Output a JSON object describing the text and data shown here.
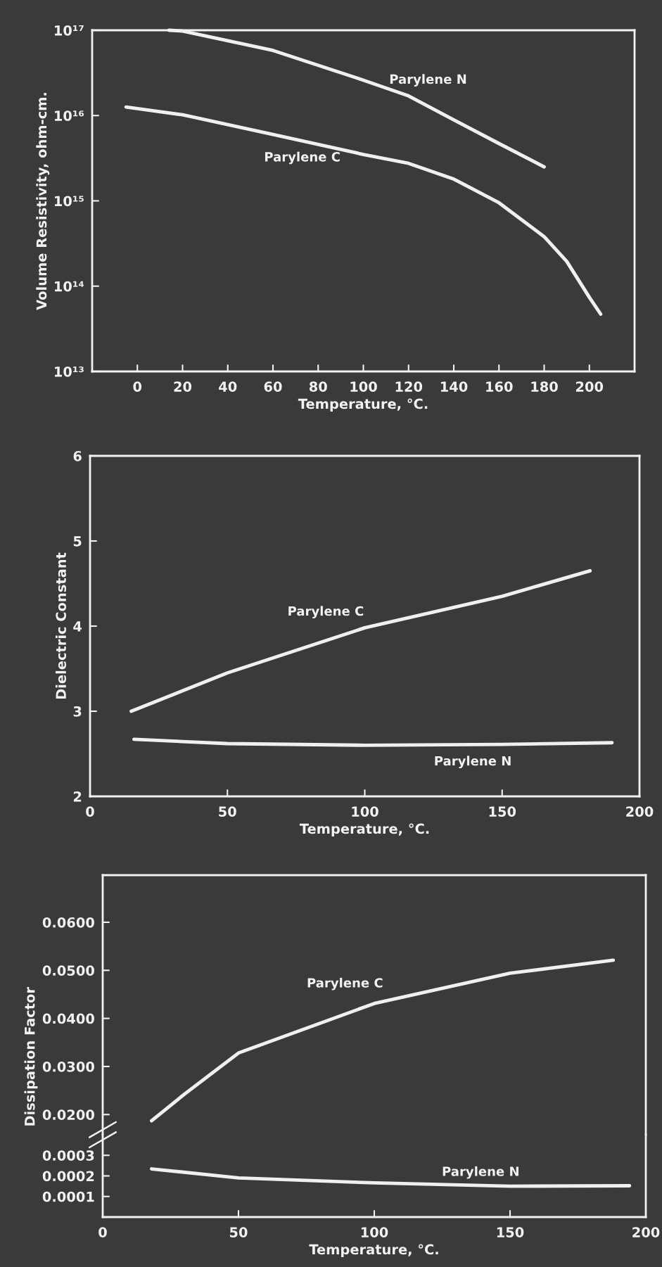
{
  "chart_data": [
    {
      "type": "line",
      "xlabel": "Temperature, °C.",
      "ylabel": "Volume Resistivity, ohm-cm.",
      "log": true,
      "grid": false,
      "xlim": [
        -20,
        220
      ],
      "ylim": [
        10000000000000.0,
        1e+17
      ],
      "xticks": [
        0,
        20,
        40,
        60,
        80,
        100,
        120,
        140,
        160,
        180,
        200
      ],
      "yticks": [
        {
          "value": 10000000000000.0,
          "label": "10¹³"
        },
        {
          "value": 100000000000000.0,
          "label": "10¹⁴"
        },
        {
          "value": 1000000000000000.0,
          "label": "10¹⁵"
        },
        {
          "value": 1e+16,
          "label": "10¹⁶"
        },
        {
          "value": 1e+17,
          "label": "10¹⁷"
        }
      ],
      "series": [
        {
          "name": "Parylene N",
          "color": "#f0f0f0",
          "x": [
            14,
            20,
            60,
            100,
            120,
            140,
            160,
            180
          ],
          "values": [
            1e+17,
            9.8e+16,
            5.8e+16,
            2.6e+16,
            1.7e+16,
            8900000000000000.0,
            4700000000000000.0,
            2500000000000000.0
          ]
        },
        {
          "name": "Parylene C",
          "color": "#f0f0f0",
          "x": [
            -5,
            20,
            60,
            100,
            120,
            140,
            160,
            180,
            190,
            200,
            205
          ],
          "values": [
            1.26e+16,
            1.02e+16,
            6000000000000000.0,
            3500000000000000.0,
            2750000000000000.0,
            1800000000000000.0,
            950000000000000.0,
            380000000000000.0,
            195000000000000.0,
            74000000000000.0,
            47000000000000.0
          ]
        }
      ]
    },
    {
      "type": "line",
      "xlabel": "Temperature, °C.",
      "ylabel": "Dielectric Constant",
      "grid": false,
      "xlim": [
        0,
        200
      ],
      "ylim": [
        2,
        6
      ],
      "xticks": [
        0,
        50,
        100,
        150,
        200
      ],
      "yticks": [
        2,
        3,
        4,
        5,
        6
      ],
      "series": [
        {
          "name": "Parylene C",
          "color": "#f0f0f0",
          "x": [
            15,
            50,
            100,
            150,
            182
          ],
          "values": [
            3.0,
            3.45,
            3.98,
            4.35,
            4.65
          ]
        },
        {
          "name": "Parylene N",
          "color": "#f0f0f0",
          "x": [
            16,
            50,
            100,
            150,
            190
          ],
          "values": [
            2.67,
            2.62,
            2.6,
            2.61,
            2.63
          ]
        }
      ]
    },
    {
      "type": "line",
      "ylabel": "Dissipation Factor",
      "grid": false,
      "xlim": [
        0,
        200
      ],
      "ylim": [
        0.0158,
        0.0698
      ],
      "tick_labels": "y",
      "yticks": [
        {
          "value": 0.02,
          "label": "0.0200"
        },
        {
          "value": 0.03,
          "label": "0.0300"
        },
        {
          "value": 0.04,
          "label": "0.0400"
        },
        {
          "value": 0.05,
          "label": "0.0500"
        },
        {
          "value": 0.06,
          "label": "0.0600"
        }
      ],
      "series": [
        {
          "name": "Parylene C",
          "color": "#f0f0f0",
          "x": [
            18,
            30,
            50,
            100,
            150,
            188
          ],
          "values": [
            0.0187,
            0.0242,
            0.0328,
            0.0431,
            0.0494,
            0.0521
          ]
        }
      ]
    },
    {
      "type": "line",
      "xlabel": "Temperature, °C.",
      "grid": false,
      "xlim": [
        0,
        200
      ],
      "ylim": [
        0,
        0.0004
      ],
      "xticks": [
        0,
        50,
        100,
        150,
        200
      ],
      "yticks": [
        {
          "value": 0.0001,
          "label": "0.0001"
        },
        {
          "value": 0.0002,
          "label": "0.0002"
        },
        {
          "value": 0.0003,
          "label": "0.0003"
        }
      ],
      "series": [
        {
          "name": "Parylene N",
          "color": "#f0f0f0",
          "x": [
            18,
            50,
            100,
            150,
            194
          ],
          "values": [
            0.000234,
            0.00019,
            0.000166,
            0.00015,
            0.000152
          ]
        }
      ]
    }
  ]
}
